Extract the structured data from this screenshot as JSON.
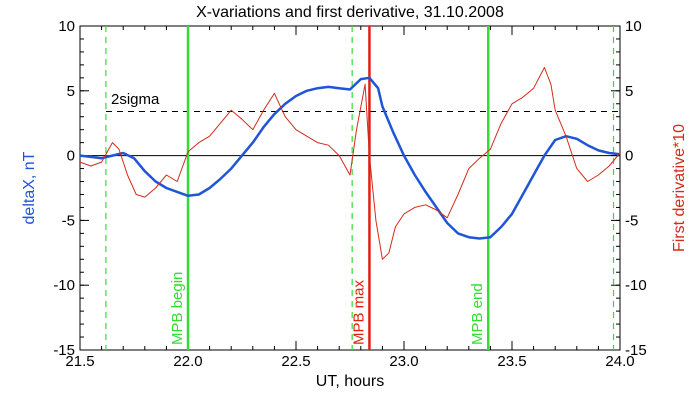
{
  "chart_data": {
    "type": "line",
    "title": "X-variations and first derivative, 31.10.2008",
    "xlabel": "UT, hours",
    "ylabel_left": "deltaX, nT",
    "ylabel_right": "First derivative*10",
    "xlim": [
      21.5,
      24.0
    ],
    "ylim_left": [
      -15,
      10
    ],
    "ylim_right": [
      -15,
      10
    ],
    "x_ticks": [
      "21.5",
      "22.0",
      "22.5",
      "23.0",
      "23.5",
      "24.0"
    ],
    "y_ticks": [
      "10",
      "5",
      "0",
      "-5",
      "-10",
      "-15"
    ],
    "colors": {
      "deltaX": "#1f55d6",
      "derivative": "#d42a1a",
      "green_marker": "#33dd33",
      "red_marker": "#e02010",
      "sigma": "#000000"
    },
    "threshold": {
      "label": "2sigma",
      "y": 3.4
    },
    "vertical_markers": [
      {
        "x": 21.62,
        "style": "dashed",
        "color": "green",
        "label": ""
      },
      {
        "x": 22.0,
        "style": "solid",
        "color": "green",
        "label": "MPB begin"
      },
      {
        "x": 22.76,
        "style": "dashed",
        "color": "green",
        "label": ""
      },
      {
        "x": 22.84,
        "style": "solid",
        "color": "red",
        "label": "MPB max"
      },
      {
        "x": 23.39,
        "style": "solid",
        "color": "green",
        "label": "MPB end"
      },
      {
        "x": 23.97,
        "style": "dashed",
        "color": "green",
        "label": ""
      }
    ],
    "series": [
      {
        "name": "deltaX, nT",
        "x": [
          21.5,
          21.55,
          21.6,
          21.65,
          21.7,
          21.75,
          21.8,
          21.85,
          21.9,
          21.95,
          22.0,
          22.05,
          22.1,
          22.15,
          22.2,
          22.25,
          22.3,
          22.35,
          22.4,
          22.45,
          22.5,
          22.55,
          22.6,
          22.65,
          22.7,
          22.75,
          22.8,
          22.84,
          22.88,
          22.9,
          22.95,
          23.0,
          23.05,
          23.1,
          23.15,
          23.2,
          23.25,
          23.3,
          23.35,
          23.4,
          23.45,
          23.5,
          23.55,
          23.6,
          23.65,
          23.7,
          23.75,
          23.8,
          23.85,
          23.9,
          23.95,
          24.0
        ],
        "values": [
          0.0,
          -0.1,
          -0.2,
          0.0,
          0.2,
          -0.2,
          -1.2,
          -2.0,
          -2.5,
          -2.8,
          -3.1,
          -3.0,
          -2.5,
          -1.8,
          -1.0,
          0.0,
          1.0,
          2.2,
          3.2,
          4.0,
          4.6,
          5.0,
          5.2,
          5.3,
          5.2,
          5.1,
          5.9,
          6.0,
          5.2,
          3.8,
          1.8,
          0.0,
          -1.5,
          -2.8,
          -4.0,
          -5.2,
          -6.0,
          -6.3,
          -6.4,
          -6.3,
          -5.5,
          -4.5,
          -3.0,
          -1.5,
          0.0,
          1.2,
          1.5,
          1.3,
          0.8,
          0.4,
          0.2,
          0.1
        ]
      },
      {
        "name": "First derivative*10",
        "x": [
          21.5,
          21.55,
          21.6,
          21.65,
          21.68,
          21.72,
          21.76,
          21.8,
          21.85,
          21.9,
          21.95,
          22.0,
          22.05,
          22.1,
          22.15,
          22.2,
          22.25,
          22.3,
          22.35,
          22.4,
          22.45,
          22.5,
          22.55,
          22.6,
          22.65,
          22.7,
          22.75,
          22.78,
          22.82,
          22.84,
          22.87,
          22.9,
          22.93,
          22.96,
          23.0,
          23.05,
          23.1,
          23.15,
          23.2,
          23.25,
          23.3,
          23.35,
          23.4,
          23.45,
          23.5,
          23.55,
          23.6,
          23.65,
          23.68,
          23.7,
          23.75,
          23.8,
          23.85,
          23.9,
          23.95,
          24.0
        ],
        "values": [
          -0.5,
          -0.8,
          -0.5,
          1.0,
          0.5,
          -1.5,
          -3.0,
          -3.2,
          -2.5,
          -1.5,
          -2.0,
          0.3,
          1.0,
          1.5,
          2.5,
          3.5,
          2.8,
          2.0,
          3.5,
          4.8,
          3.0,
          2.0,
          1.5,
          1.0,
          0.8,
          0.0,
          -1.5,
          2.0,
          5.5,
          0.0,
          -5.0,
          -8.0,
          -7.5,
          -5.5,
          -4.5,
          -4.0,
          -3.8,
          -4.2,
          -4.8,
          -3.0,
          -1.0,
          -0.2,
          0.5,
          2.5,
          4.0,
          4.5,
          5.2,
          6.8,
          5.5,
          3.5,
          1.5,
          -1.0,
          -2.0,
          -1.5,
          -0.8,
          0.2
        ]
      }
    ]
  }
}
